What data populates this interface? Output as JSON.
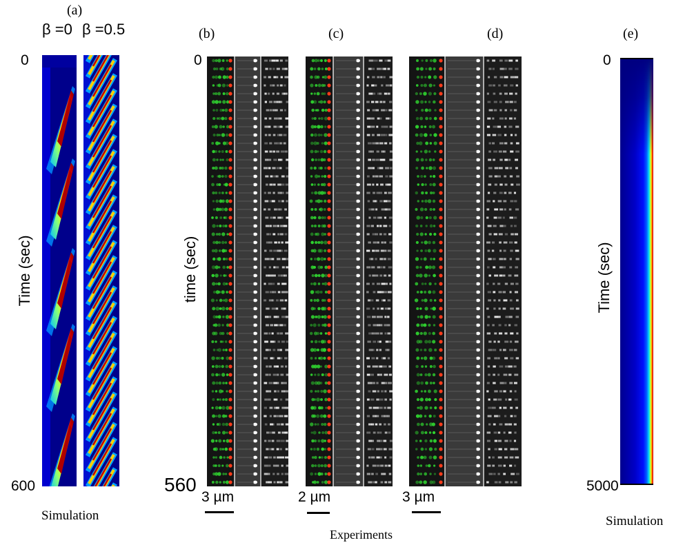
{
  "panel_labels": {
    "a": "(a)",
    "b": "(b)",
    "c": "(c)",
    "d": "(d)",
    "e": "(e)"
  },
  "panel_a": {
    "beta_left": "β =0",
    "beta_right": "β =0.5",
    "tick_top": "0",
    "tick_bottom": "600",
    "ylabel": "Time (sec)",
    "caption": "Simulation"
  },
  "panel_b": {
    "tick_top": "0",
    "tick_bottom": "560",
    "ylabel": "time (sec)",
    "scale": "3 µm"
  },
  "panel_c": {
    "scale": "2 µm"
  },
  "panel_d": {
    "scale": "3 µm"
  },
  "experiments_caption": "Experiments",
  "panel_e": {
    "tick_top": "0",
    "tick_bottom": "5000",
    "ylabel": "Time (sec)",
    "caption": "Simulation"
  },
  "colors": {
    "jet_low": "#00007f",
    "jet_high": "#7f0000",
    "spot_red": "#ff3b1a",
    "spot_green": "#2fd12f"
  }
}
